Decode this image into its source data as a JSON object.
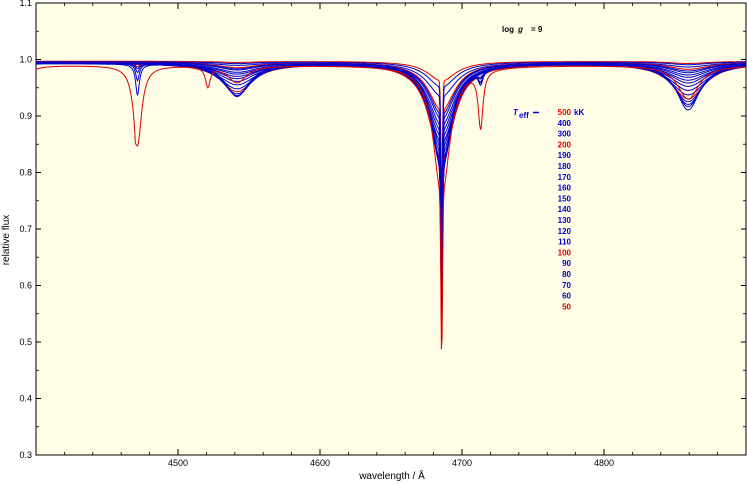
{
  "chart_data": {
    "type": "line",
    "xlabel": "wavelength / Å",
    "ylabel": "relative flux",
    "xlim": [
      4400,
      4900
    ],
    "ylim": [
      0.3,
      1.1
    ],
    "x_ticks": [
      "4500",
      "4600",
      "4700",
      "4800"
    ],
    "y_ticks": [
      "0.3",
      "0.4",
      "0.5",
      "0.6",
      "0.7",
      "0.8",
      "0.9",
      "1.0",
      "1.1"
    ],
    "annotation": {
      "prefix": "log",
      "var": "g",
      "rest": "= 9"
    },
    "legend": {
      "title_var": "T",
      "title_sub": "eff",
      "unit": "kK",
      "entries": [
        {
          "label": "500",
          "color": "#dd0000"
        },
        {
          "label": "400",
          "color": "#0000cc"
        },
        {
          "label": "300",
          "color": "#0000cc"
        },
        {
          "label": "200",
          "color": "#dd0000"
        },
        {
          "label": "190",
          "color": "#0000cc"
        },
        {
          "label": "180",
          "color": "#0000cc"
        },
        {
          "label": "170",
          "color": "#0000cc"
        },
        {
          "label": "160",
          "color": "#0000cc"
        },
        {
          "label": "150",
          "color": "#0000cc"
        },
        {
          "label": "140",
          "color": "#0000cc"
        },
        {
          "label": "130",
          "color": "#0000cc"
        },
        {
          "label": "120",
          "color": "#0000cc"
        },
        {
          "label": "110",
          "color": "#0000cc"
        },
        {
          "label": "100",
          "color": "#dd0000"
        },
        {
          "label": "90",
          "color": "#0000cc"
        },
        {
          "label": "80",
          "color": "#0000cc"
        },
        {
          "label": "70",
          "color": "#0000cc"
        },
        {
          "label": "60",
          "color": "#0000cc"
        },
        {
          "label": "50",
          "color": "#dd0000"
        }
      ]
    },
    "series": [
      {
        "color": "#dd0000",
        "cont": 0.997,
        "lines": [
          [
            4541.6,
            0.002,
            16
          ],
          [
            4685.7,
            0.035,
            12
          ],
          [
            4859.3,
            0.004,
            16
          ]
        ],
        "core": 0.0,
        "core_w": 0.2
      },
      {
        "color": "#0000cc",
        "cont": 0.996,
        "lines": [
          [
            4541.6,
            0.003,
            16
          ],
          [
            4685.7,
            0.045,
            12
          ],
          [
            4859.3,
            0.005,
            16
          ]
        ],
        "core": 0.0,
        "core_w": 0.2
      },
      {
        "color": "#0000cc",
        "cont": 0.995,
        "lines": [
          [
            4541.6,
            0.005,
            17
          ],
          [
            4685.7,
            0.06,
            12
          ],
          [
            4859.3,
            0.008,
            17
          ]
        ],
        "core": 0.0,
        "core_w": 0.2
      },
      {
        "color": "#dd0000",
        "cont": 0.995,
        "lines": [
          [
            4541.6,
            0.009,
            17
          ],
          [
            4685.7,
            0.085,
            11
          ],
          [
            4859.3,
            0.012,
            17
          ]
        ],
        "core": 0.0,
        "core_w": 0.2
      },
      {
        "color": "#0000cc",
        "cont": 0.995,
        "lines": [
          [
            4541.6,
            0.011,
            17
          ],
          [
            4685.7,
            0.092,
            11
          ],
          [
            4859.3,
            0.015,
            17
          ]
        ],
        "core": 0.0,
        "core_w": 0.2
      },
      {
        "color": "#0000cc",
        "cont": 0.995,
        "lines": [
          [
            4541.6,
            0.013,
            17
          ],
          [
            4685.7,
            0.1,
            11
          ],
          [
            4859.3,
            0.018,
            17
          ]
        ],
        "core": 0.0,
        "core_w": 0.2
      },
      {
        "color": "#0000cc",
        "cont": 0.994,
        "lines": [
          [
            4541.6,
            0.016,
            17
          ],
          [
            4685.7,
            0.11,
            11
          ],
          [
            4859.3,
            0.021,
            17
          ]
        ],
        "core": 0.0,
        "core_w": 0.2
      },
      {
        "color": "#0000cc",
        "cont": 0.994,
        "lines": [
          [
            4541.6,
            0.019,
            17
          ],
          [
            4685.7,
            0.12,
            11
          ],
          [
            4859.3,
            0.025,
            17
          ]
        ],
        "core": 0.0,
        "core_w": 0.2
      },
      {
        "color": "#0000cc",
        "cont": 0.994,
        "lines": [
          [
            4541.6,
            0.023,
            17
          ],
          [
            4685.7,
            0.13,
            11
          ],
          [
            4859.3,
            0.03,
            17
          ]
        ],
        "core": 0.0,
        "core_w": 0.2
      },
      {
        "color": "#0000cc",
        "cont": 0.994,
        "lines": [
          [
            4541.6,
            0.027,
            16
          ],
          [
            4685.7,
            0.14,
            11
          ],
          [
            4859.3,
            0.035,
            16
          ]
        ],
        "core": 0.0,
        "core_w": 0.2
      },
      {
        "color": "#0000cc",
        "cont": 0.994,
        "lines": [
          [
            4541.6,
            0.032,
            16
          ],
          [
            4685.7,
            0.15,
            10
          ],
          [
            4859.3,
            0.041,
            16
          ]
        ],
        "core": 0.0,
        "core_w": 0.2
      },
      {
        "color": "#0000cc",
        "cont": 0.994,
        "lines": [
          [
            4541.6,
            0.038,
            16
          ],
          [
            4685.7,
            0.16,
            10
          ],
          [
            4859.3,
            0.048,
            16
          ]
        ],
        "core": 0.0,
        "core_w": 0.2
      },
      {
        "color": "#0000cc",
        "cont": 0.994,
        "lines": [
          [
            4541.6,
            0.045,
            15
          ],
          [
            4685.7,
            0.17,
            10
          ],
          [
            4859.3,
            0.056,
            15
          ],
          [
            4713.1,
            0.004,
            2
          ]
        ],
        "core": 0.0,
        "core_w": 0.2
      },
      {
        "color": "#dd0000",
        "cont": 0.994,
        "lines": [
          [
            4541.6,
            0.05,
            14
          ],
          [
            4685.7,
            0.175,
            10
          ],
          [
            4859.3,
            0.063,
            14
          ],
          [
            4713.1,
            0.006,
            2
          ],
          [
            4471.5,
            0.004,
            1.5
          ]
        ],
        "core": 0.0,
        "core_w": 0.2
      },
      {
        "color": "#0000cc",
        "cont": 0.994,
        "lines": [
          [
            4541.6,
            0.054,
            13
          ],
          [
            4685.7,
            0.18,
            9
          ],
          [
            4859.3,
            0.068,
            13
          ],
          [
            4713.1,
            0.01,
            2
          ],
          [
            4471.5,
            0.008,
            1.5
          ]
        ],
        "core": 0.0,
        "core_w": 0.2
      },
      {
        "color": "#0000cc",
        "cont": 0.994,
        "lines": [
          [
            4541.6,
            0.057,
            12
          ],
          [
            4685.7,
            0.185,
            9
          ],
          [
            4859.3,
            0.073,
            12
          ],
          [
            4713.1,
            0.015,
            2
          ],
          [
            4471.5,
            0.015,
            1.5
          ]
        ],
        "core": 0.0,
        "core_w": 0.2
      },
      {
        "color": "#0000cc",
        "cont": 0.994,
        "lines": [
          [
            4541.6,
            0.058,
            11
          ],
          [
            4685.7,
            0.19,
            8
          ],
          [
            4859.3,
            0.077,
            11
          ],
          [
            4713.1,
            0.02,
            2
          ],
          [
            4471.5,
            0.03,
            1.5
          ]
        ],
        "core": 0.0,
        "core_w": 0.2
      },
      {
        "color": "#0000cc",
        "cont": 0.993,
        "lines": [
          [
            4541.6,
            0.058,
            10
          ],
          [
            4685.7,
            0.19,
            7.5
          ],
          [
            4859.3,
            0.082,
            10
          ],
          [
            4713.1,
            0.025,
            2
          ],
          [
            4471.5,
            0.055,
            1.6
          ],
          [
            4388.9,
            0.01,
            3
          ]
        ],
        "core": 0.0,
        "core_w": 0.2
      },
      {
        "color": "#dd0000",
        "cont": 0.99,
        "lines": [
          [
            4471.5,
            0.14,
            3.5
          ],
          [
            4470,
            0.02,
            0.5
          ],
          [
            4541.6,
            0.03,
            8
          ],
          [
            4685.7,
            0.23,
            7
          ],
          [
            4713.1,
            0.1,
            2
          ],
          [
            4859.3,
            0.06,
            9
          ],
          [
            4388.9,
            0.03,
            6
          ],
          [
            4521,
            0.035,
            2
          ]
        ],
        "core": 0.0,
        "core_w": 0.2
      }
    ]
  }
}
